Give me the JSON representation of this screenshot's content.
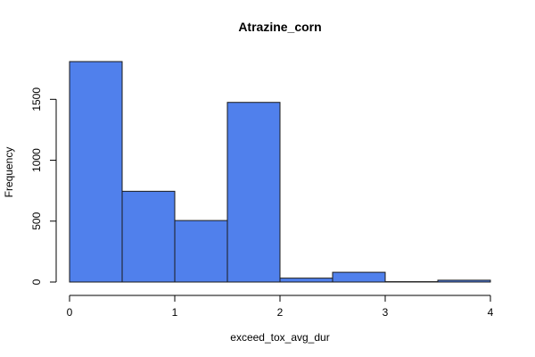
{
  "chart_data": {
    "type": "bar",
    "title": "Atrazine_corn",
    "xlabel": "exceed_tox_avg_dur",
    "ylabel": "Frequency",
    "bins": [
      {
        "x0": 0.0,
        "x1": 0.5,
        "count": 1810
      },
      {
        "x0": 0.5,
        "x1": 1.0,
        "count": 745
      },
      {
        "x0": 1.0,
        "x1": 1.5,
        "count": 505
      },
      {
        "x0": 1.5,
        "x1": 2.0,
        "count": 1475
      },
      {
        "x0": 2.0,
        "x1": 2.5,
        "count": 32
      },
      {
        "x0": 2.5,
        "x1": 3.0,
        "count": 80
      },
      {
        "x0": 3.0,
        "x1": 3.5,
        "count": 3
      },
      {
        "x0": 3.5,
        "x1": 4.0,
        "count": 15
      }
    ],
    "xlim": [
      0,
      4
    ],
    "ylim": [
      0,
      1810
    ],
    "xticks": [
      0,
      1,
      2,
      3,
      4
    ],
    "yticks": [
      0,
      500,
      1000,
      1500
    ],
    "bar_color": "#5080ec",
    "grid": false
  }
}
